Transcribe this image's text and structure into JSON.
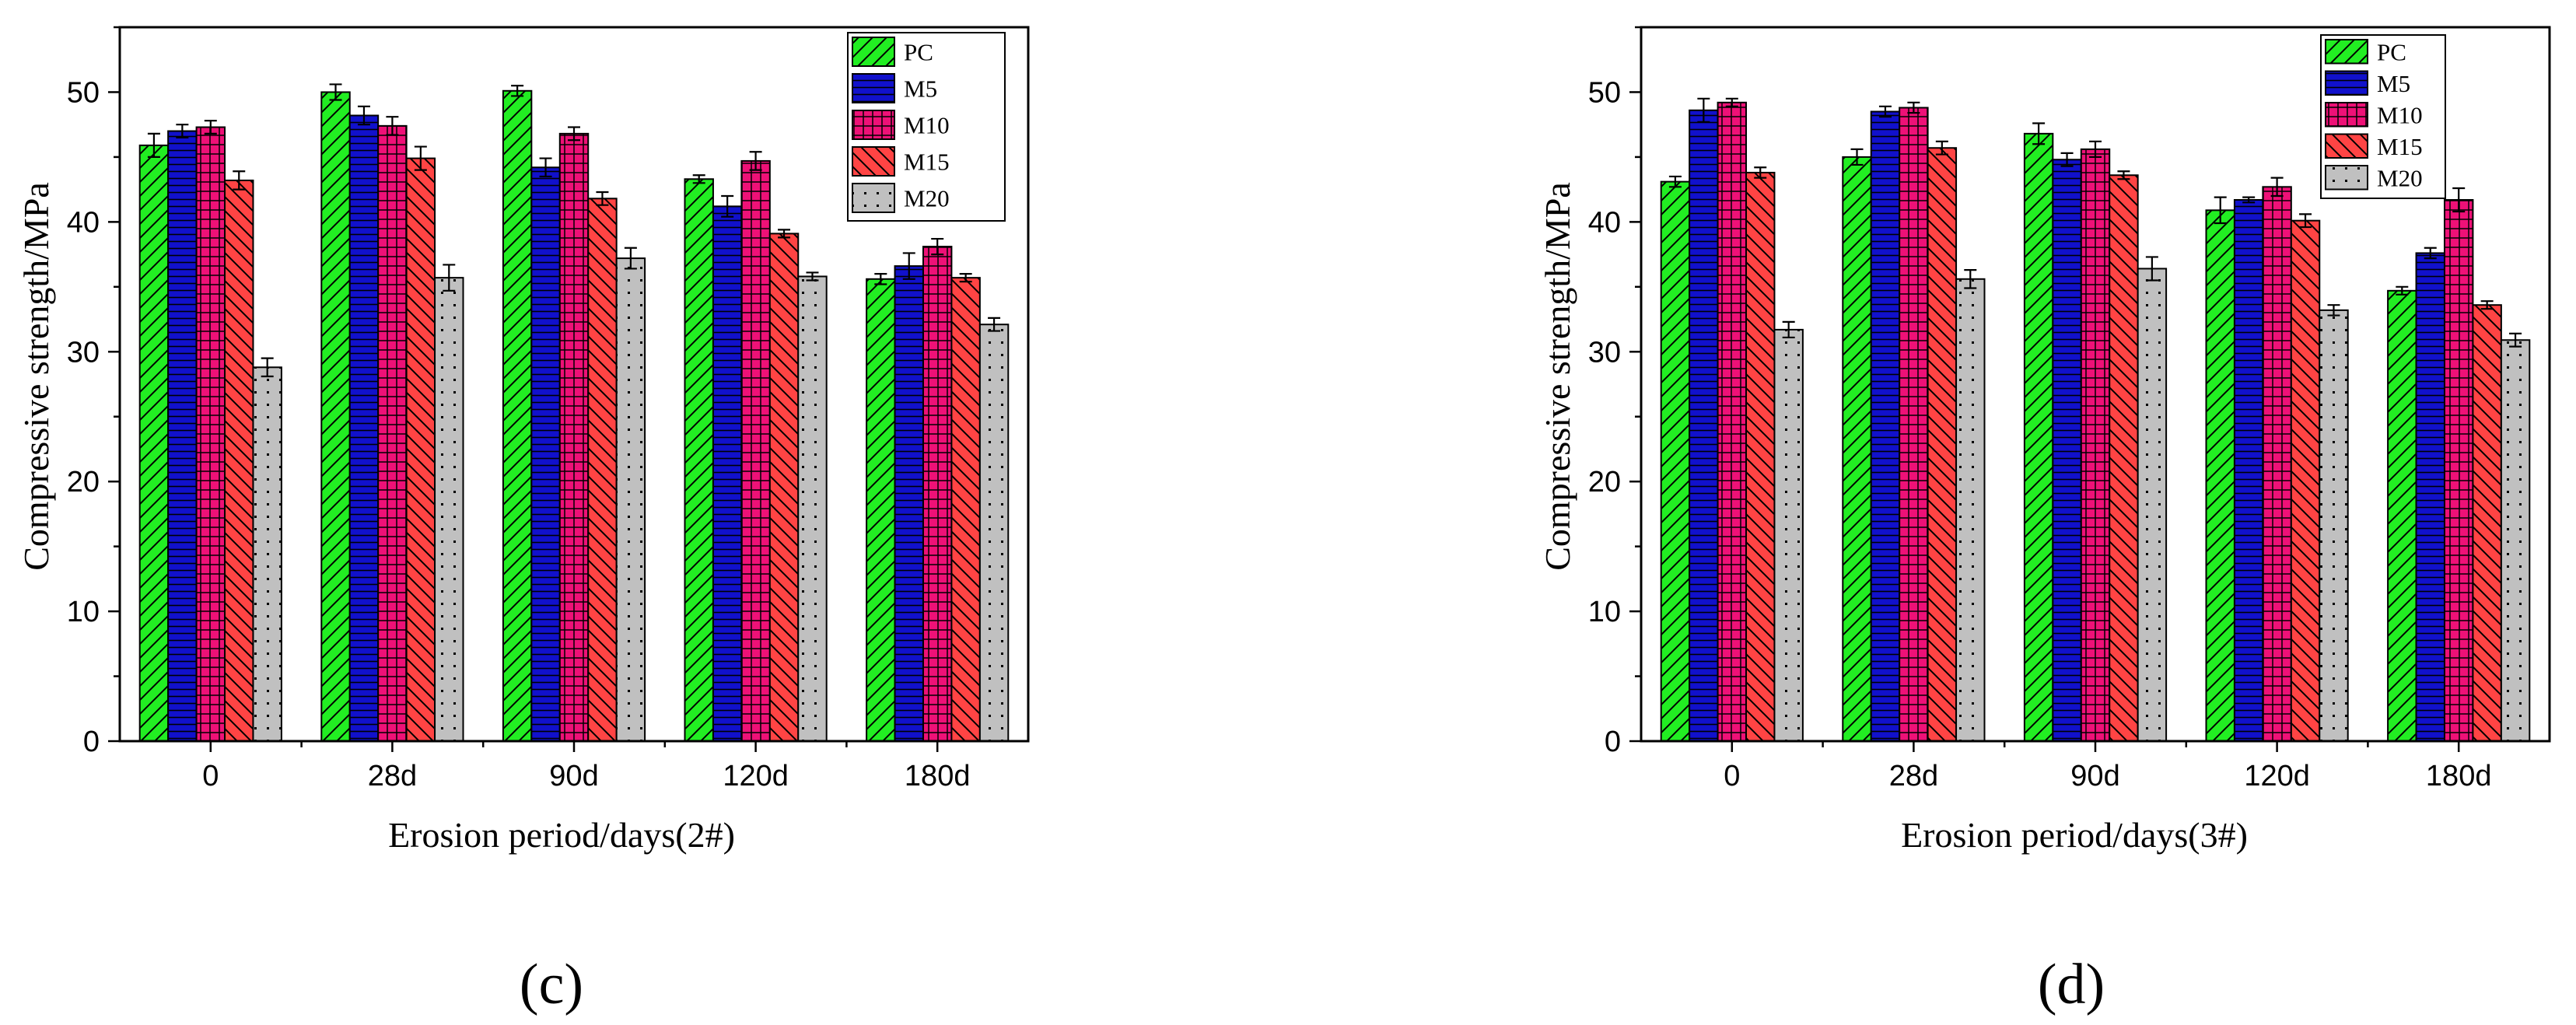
{
  "figure": {
    "panel_labels": [
      "(c)",
      "(d)"
    ]
  },
  "colors": {
    "PC": "#22ee22",
    "M5": "#1111cc",
    "M10": "#ee1177",
    "M15": "#ff4444",
    "M20": "#c0c0c0"
  },
  "chart_data": [
    {
      "type": "bar",
      "panel": "(c)",
      "title": "",
      "xlabel": "Erosion period/days(2#)",
      "ylabel": "Compressive strength/MPa",
      "categories": [
        "0",
        "28d",
        "90d",
        "120d",
        "180d"
      ],
      "ylim": [
        0,
        55
      ],
      "yticks": [
        0,
        10,
        20,
        30,
        40,
        50
      ],
      "legend_position": "top-right",
      "error_bars": true,
      "series": [
        {
          "name": "PC",
          "values": [
            45.9,
            50.0,
            50.1,
            43.3,
            35.6
          ],
          "errors": [
            0.9,
            0.6,
            0.4,
            0.3,
            0.4
          ]
        },
        {
          "name": "M5",
          "values": [
            47.0,
            48.2,
            44.2,
            41.2,
            36.6
          ],
          "errors": [
            0.5,
            0.7,
            0.7,
            0.8,
            1.0
          ]
        },
        {
          "name": "M10",
          "values": [
            47.3,
            47.4,
            46.8,
            44.7,
            38.1
          ],
          "errors": [
            0.5,
            0.7,
            0.5,
            0.7,
            0.6
          ]
        },
        {
          "name": "M15",
          "values": [
            43.2,
            44.9,
            41.8,
            39.1,
            35.7
          ],
          "errors": [
            0.7,
            0.9,
            0.5,
            0.3,
            0.3
          ]
        },
        {
          "name": "M20",
          "values": [
            28.8,
            35.7,
            37.2,
            35.8,
            32.1
          ],
          "errors": [
            0.7,
            1.0,
            0.8,
            0.3,
            0.5
          ]
        }
      ]
    },
    {
      "type": "bar",
      "panel": "(d)",
      "title": "",
      "xlabel": "Erosion period/days(3#)",
      "ylabel": "Compressive strength/MPa",
      "categories": [
        "0",
        "28d",
        "90d",
        "120d",
        "180d"
      ],
      "ylim": [
        0,
        55
      ],
      "yticks": [
        0,
        10,
        20,
        30,
        40,
        50
      ],
      "legend_position": "top-right",
      "error_bars": true,
      "series": [
        {
          "name": "PC",
          "values": [
            43.1,
            45.0,
            46.8,
            40.9,
            34.7
          ],
          "errors": [
            0.4,
            0.6,
            0.8,
            1.0,
            0.3
          ]
        },
        {
          "name": "M5",
          "values": [
            48.6,
            48.5,
            44.8,
            41.7,
            37.6
          ],
          "errors": [
            0.9,
            0.4,
            0.5,
            0.2,
            0.4
          ]
        },
        {
          "name": "M10",
          "values": [
            49.2,
            48.8,
            45.6,
            42.7,
            41.7
          ],
          "errors": [
            0.3,
            0.4,
            0.6,
            0.7,
            0.9
          ]
        },
        {
          "name": "M15",
          "values": [
            43.8,
            45.7,
            43.6,
            40.1,
            33.6
          ],
          "errors": [
            0.4,
            0.5,
            0.3,
            0.5,
            0.3
          ]
        },
        {
          "name": "M20",
          "values": [
            31.7,
            35.6,
            36.4,
            33.2,
            30.9
          ],
          "errors": [
            0.6,
            0.7,
            0.9,
            0.4,
            0.5
          ]
        }
      ]
    }
  ]
}
